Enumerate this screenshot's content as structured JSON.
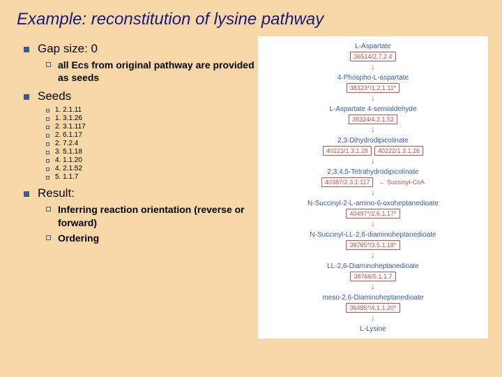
{
  "title": "Example: reconstitution of lysine pathway",
  "gap": {
    "label": "Gap size: 0",
    "sub": "all Ecs from original pathway are provided as seeds"
  },
  "seeds": {
    "label": "Seeds",
    "items": [
      "1. 2.1.11",
      "1. 3.1.26",
      "2. 3.1.117",
      "2. 6.1.17",
      "2. 7.2.4",
      "3. 5.1.18",
      "4. 1.1.20",
      "4. 2.1.52",
      "5. 1.1.7"
    ]
  },
  "result": {
    "label": "Result:",
    "items": [
      "Inferring reaction orientation (reverse or forward)",
      "Ordering"
    ]
  },
  "pathway": {
    "nodes": [
      "L-Aspartate",
      "4-Phospho-L-aspartate",
      "L-Aspartate 4-semialdehyde",
      "2,3-Dihydrodipicolinate",
      "2,3,4,5-Tetrahydrodipicolinate",
      "N-Succinyl-2-L-amino-6-oxoheptanedioate",
      "N-Succinyl-LL-2,6-diaminoheptanedioate",
      "LL-2,6-Diaminoheptanedioate",
      "meso-2,6-Diaminoheptanedioate",
      "L-Lysine"
    ],
    "boxes": [
      "36514/2.7.2.4",
      "38323*/1.2.1.11*",
      "38324/4.2.1.52",
      "40223/1.3.1.26",
      "40222/1.3.1.26",
      "40387/2.3.1.117",
      "40497*/2.6.1.17*",
      "38765*/3.5.1.18*",
      "38766/5.1.1.7",
      "36485*/4.1.1.20*"
    ],
    "side_label": "Succinyl-CoA"
  }
}
